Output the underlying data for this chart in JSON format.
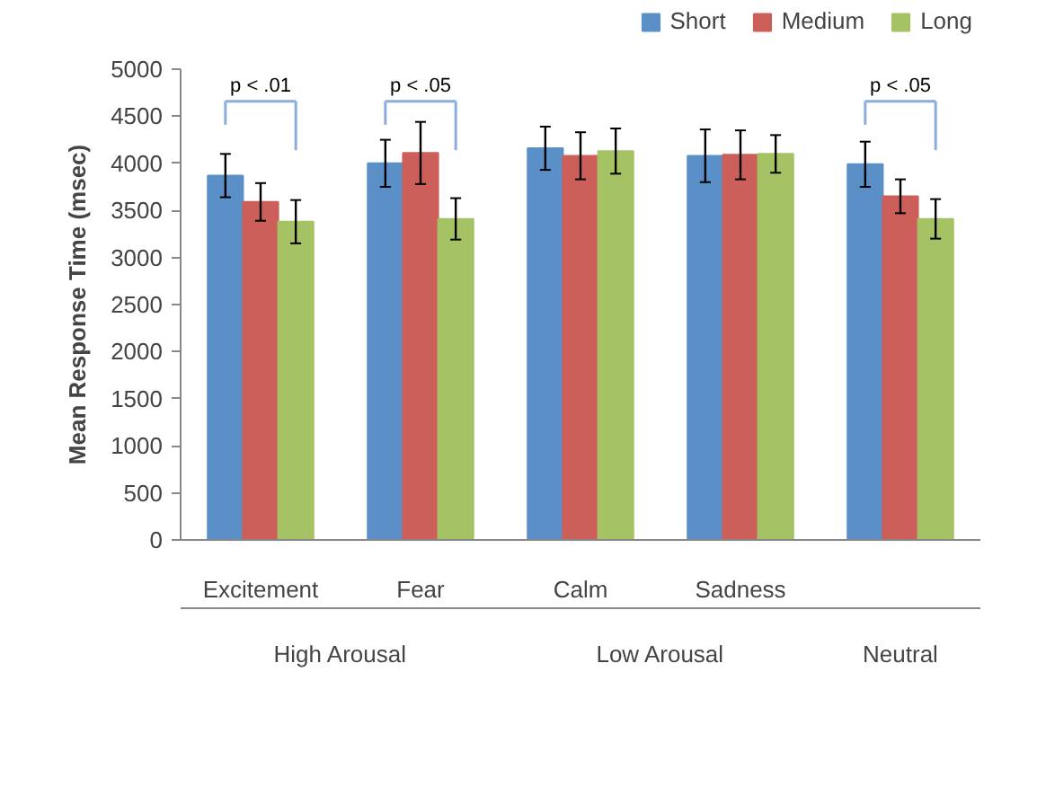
{
  "chart_data": {
    "type": "bar",
    "ylabel": "Mean Response Time (msec)",
    "categories": [
      "Excitement",
      "Fear",
      "Calm",
      "Sadness",
      null
    ],
    "series": [
      {
        "name": "Short",
        "color": "#5b8fc7",
        "values": [
          3870,
          4000,
          4160,
          4080,
          3990
        ],
        "errors": [
          230,
          250,
          230,
          280,
          240
        ]
      },
      {
        "name": "Medium",
        "color": "#cd5f5a",
        "values": [
          3590,
          4110,
          4080,
          4090,
          3650
        ],
        "errors": [
          200,
          330,
          250,
          260,
          180
        ]
      },
      {
        "name": "Long",
        "color": "#a5c264",
        "values": [
          3380,
          3410,
          4130,
          4100,
          3410
        ],
        "errors": [
          230,
          220,
          240,
          200,
          210
        ]
      }
    ],
    "ylim": [
      0,
      5000
    ],
    "yticks": [
      0,
      500,
      1000,
      1500,
      2000,
      2500,
      3000,
      3500,
      4000,
      4500,
      5000
    ],
    "grid": false,
    "legend": "top right",
    "annotations": [
      "p < .01",
      "p < .05",
      "p < .05",
      "High Arousal",
      "Low Arousal",
      "Neutral"
    ]
  }
}
